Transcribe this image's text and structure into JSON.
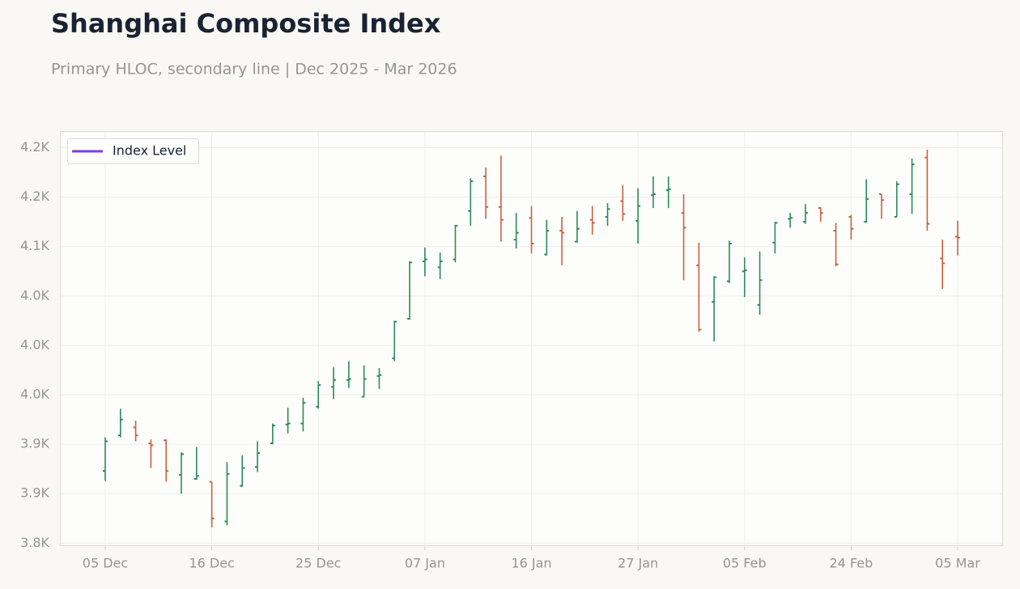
{
  "chart_data": {
    "type": "hloc",
    "title": "Shanghai Composite Index",
    "subtitle": "Primary HLOC, secondary line | Dec 2025 - Mar 2026",
    "categories": [
      "05 Dec",
      null,
      null,
      null,
      null,
      null,
      null,
      "16 Dec",
      null,
      null,
      null,
      null,
      null,
      null,
      "25 Dec",
      null,
      null,
      null,
      null,
      null,
      null,
      "07 Jan",
      null,
      null,
      null,
      null,
      null,
      null,
      "16 Jan",
      null,
      null,
      null,
      null,
      null,
      null,
      "27 Jan",
      null,
      null,
      null,
      null,
      null,
      null,
      "05 Feb",
      null,
      null,
      null,
      null,
      null,
      null,
      "24 Feb",
      null,
      null,
      null,
      null,
      null,
      null,
      "05 Mar"
    ],
    "open": [
      3873,
      3909,
      3917,
      3901,
      3904,
      3869,
      3865,
      3862,
      3822,
      3858,
      3877,
      3901,
      3920,
      3921,
      3938,
      3958,
      3965,
      3948,
      3969,
      3987,
      4027,
      4085,
      4079,
      4087,
      4136,
      4171,
      4140,
      4107,
      4129,
      4092,
      4116,
      4105,
      4127,
      4130,
      4146,
      4126,
      4152,
      4157,
      4134,
      4081,
      4044,
      4065,
      4075,
      4041,
      4104,
      4128,
      4125,
      4139,
      4116,
      4130,
      4125,
      4153,
      4130,
      4153,
      4190,
      4088,
      4110
    ],
    "high": [
      3907,
      3936,
      3924,
      3905,
      3905,
      3892,
      3897,
      3862,
      3882,
      3889,
      3903,
      3921,
      3937,
      3947,
      3964,
      3978,
      3984,
      3980,
      3977,
      4025,
      4085,
      4099,
      4094,
      4122,
      4169,
      4180,
      4192,
      4134,
      4141,
      4127,
      4130,
      4136,
      4141,
      4144,
      4162,
      4159,
      4171,
      4171,
      4153,
      4104,
      4070,
      4106,
      4089,
      4095,
      4125,
      4134,
      4143,
      4140,
      4124,
      4132,
      4168,
      4153,
      4166,
      4189,
      4198,
      4107,
      4126
    ],
    "low": [
      3863,
      3907,
      3903,
      3876,
      3862,
      3850,
      3864,
      3816,
      3818,
      3857,
      3872,
      3900,
      3911,
      3913,
      3936,
      3946,
      3957,
      3948,
      3956,
      3984,
      4026,
      4070,
      4067,
      4084,
      4121,
      4128,
      4105,
      4098,
      4093,
      4091,
      4081,
      4104,
      4112,
      4121,
      4126,
      4103,
      4139,
      4139,
      4066,
      4014,
      4004,
      4063,
      4049,
      4031,
      4093,
      4119,
      4123,
      4125,
      4080,
      4107,
      4124,
      4128,
      4130,
      4133,
      4116,
      4057,
      4091
    ],
    "close": [
      3903,
      3925,
      3909,
      3899,
      3873,
      3890,
      3868,
      3825,
      3870,
      3876,
      3891,
      3919,
      3921,
      3942,
      3960,
      3965,
      3966,
      3966,
      3970,
      4024,
      4084,
      4087,
      4085,
      4121,
      4166,
      4140,
      4127,
      4114,
      4103,
      4116,
      4114,
      4118,
      4124,
      4138,
      4133,
      4141,
      4153,
      4158,
      4119,
      4016,
      4069,
      4103,
      4076,
      4066,
      4124,
      4129,
      4134,
      4134,
      4082,
      4118,
      4148,
      4147,
      4163,
      4183,
      4123,
      4083,
      4109
    ],
    "up_color": "#2e8b57",
    "down_color": "#c8623f",
    "series": [
      {
        "name": "Index Level",
        "color": "#7c3aed"
      }
    ],
    "legend": "upper left",
    "grid": true,
    "ylim": [
      3797,
      4216
    ],
    "yticks": [
      {
        "value": 3800,
        "label": "3.8K"
      },
      {
        "value": 3850,
        "label": "3.9K"
      },
      {
        "value": 3900,
        "label": "3.9K"
      },
      {
        "value": 3950,
        "label": "4.0K"
      },
      {
        "value": 4000,
        "label": "4.0K"
      },
      {
        "value": 4050,
        "label": "4.0K"
      },
      {
        "value": 4100,
        "label": "4.1K"
      },
      {
        "value": 4150,
        "label": "4.2K"
      },
      {
        "value": 4200,
        "label": "4.2K"
      }
    ]
  }
}
